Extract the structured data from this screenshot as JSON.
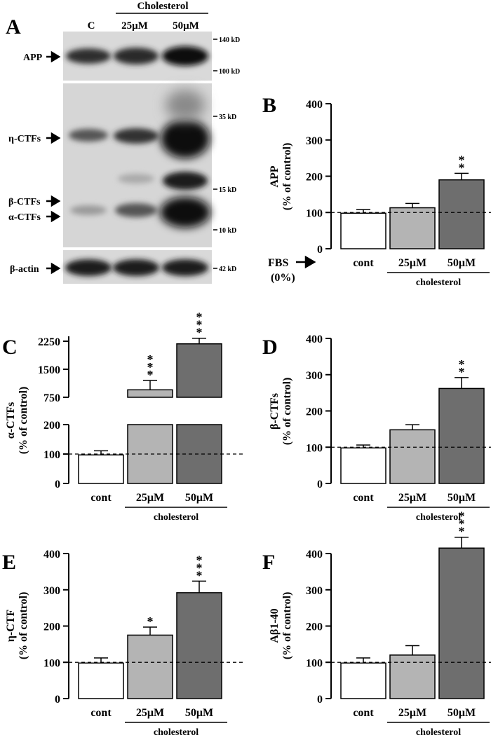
{
  "figure": {
    "blot": {
      "panel_letter": "A",
      "lane_labels": [
        "C",
        "25μM",
        "50μM"
      ],
      "treatment_label": "Cholesterol",
      "band_labels": {
        "app": "APP",
        "eta_ctfs": "η-CTFs",
        "beta_ctfs": "β-CTFs",
        "alpha_ctfs": "α-CTFs",
        "beta_actin": "β-actin"
      },
      "markers": [
        "140 kD",
        "100 kD",
        "35 kD",
        "15 kD",
        "10 kD",
        "42 kD"
      ]
    },
    "fbs_label": "FBS",
    "fbs_value": "(0%)",
    "dashed_reference_value": 100
  },
  "chart_data": [
    {
      "panel": "B",
      "type": "bar",
      "categories": [
        "cont",
        "25μM",
        "50μM"
      ],
      "group_label": "cholesterol",
      "ylabel_line1": "APP",
      "ylabel_line2": "(% of control)",
      "ylim": [
        0,
        400
      ],
      "yticks": [
        "0",
        "100",
        "200",
        "300",
        "400"
      ],
      "values": [
        98,
        113,
        190
      ],
      "errors": [
        10,
        12,
        18
      ],
      "significance": [
        "",
        "",
        "**"
      ],
      "colors": [
        "#ffffff",
        "#b4b4b4",
        "#6e6e6e"
      ]
    },
    {
      "panel": "C",
      "type": "bar",
      "broken_axis": true,
      "categories": [
        "cont",
        "25μM",
        "50μM"
      ],
      "group_label": "cholesterol",
      "ylabel_line1": "α-CTFs",
      "ylabel_line2": "(% of control)",
      "yticks_lower": [
        "0",
        "100",
        "200"
      ],
      "yticks_upper": [
        "750",
        "1500",
        "2250"
      ],
      "values": [
        97,
        950,
        2180
      ],
      "errors": [
        14,
        250,
        150
      ],
      "significance": [
        "",
        "***",
        "***"
      ],
      "colors": [
        "#ffffff",
        "#b4b4b4",
        "#6e6e6e"
      ]
    },
    {
      "panel": "D",
      "type": "bar",
      "categories": [
        "cont",
        "25μM",
        "50μM"
      ],
      "group_label": "cholesterol",
      "ylabel_line1": "β-CTFs",
      "ylabel_line2": "(% of control)",
      "ylim": [
        0,
        400
      ],
      "yticks": [
        "0",
        "100",
        "200",
        "300",
        "400"
      ],
      "values": [
        98,
        148,
        262
      ],
      "errors": [
        8,
        14,
        30
      ],
      "significance": [
        "",
        "",
        "**"
      ],
      "colors": [
        "#ffffff",
        "#b4b4b4",
        "#6e6e6e"
      ]
    },
    {
      "panel": "E",
      "type": "bar",
      "categories": [
        "cont",
        "25μM",
        "50μM"
      ],
      "group_label": "cholesterol",
      "ylabel_line1": "η-CTF",
      "ylabel_line2": "(% of control)",
      "ylim": [
        0,
        400
      ],
      "yticks": [
        "0",
        "100",
        "200",
        "300",
        "400"
      ],
      "values": [
        98,
        175,
        292
      ],
      "errors": [
        14,
        22,
        32
      ],
      "significance": [
        "",
        "*",
        "***"
      ],
      "colors": [
        "#ffffff",
        "#b4b4b4",
        "#6e6e6e"
      ]
    },
    {
      "panel": "F",
      "type": "bar",
      "categories": [
        "cont",
        "25μM",
        "50μM"
      ],
      "group_label": "cholesterol",
      "ylabel_line1": "Aβ1-40",
      "ylabel_line2": "(% of control)",
      "ylim": [
        0,
        400
      ],
      "yticks": [
        "0",
        "100",
        "200",
        "300",
        "400"
      ],
      "values": [
        98,
        120,
        415
      ],
      "errors": [
        14,
        26,
        30
      ],
      "significance": [
        "",
        "",
        "***"
      ],
      "colors": [
        "#ffffff",
        "#b4b4b4",
        "#6e6e6e"
      ]
    }
  ]
}
